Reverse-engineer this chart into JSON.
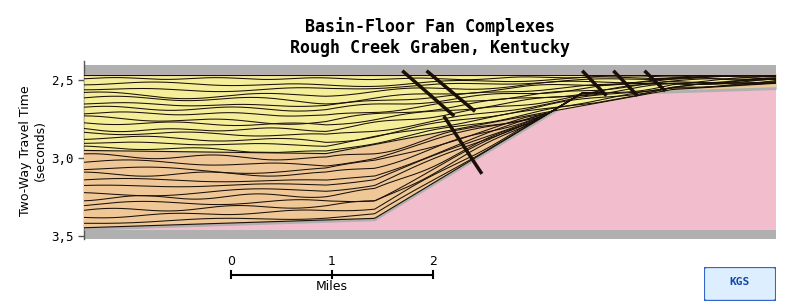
{
  "title_line1": "Basin-Floor Fan Complexes",
  "title_line2": "Rough Creek Graben, Kentucky",
  "ylabel": "Two-Way Travel Time\n(seconds)",
  "scale_label": "Miles",
  "ylim": [
    3.52,
    2.38
  ],
  "xlim": [
    0.0,
    1.0
  ],
  "yticks": [
    2.5,
    3.0,
    3.5
  ],
  "ytick_labels": [
    "2,5",
    "3,0",
    "3,5"
  ],
  "bg_color": "#ffffff",
  "gray_color": "#b0b0b0",
  "pink_color": "#f2bece",
  "yellow_color": "#f5ef9a",
  "orange_color": "#f0c898",
  "dark_line_color": "#1a1008",
  "title_fontsize": 12,
  "axis_fontsize": 9,
  "fault_lines": [
    [
      0.46,
      2.44,
      0.535,
      2.73
    ],
    [
      0.495,
      2.44,
      0.565,
      2.7
    ],
    [
      0.52,
      2.73,
      0.575,
      3.1
    ],
    [
      0.72,
      2.44,
      0.755,
      2.6
    ],
    [
      0.765,
      2.44,
      0.8,
      2.6
    ],
    [
      0.81,
      2.44,
      0.84,
      2.57
    ]
  ]
}
